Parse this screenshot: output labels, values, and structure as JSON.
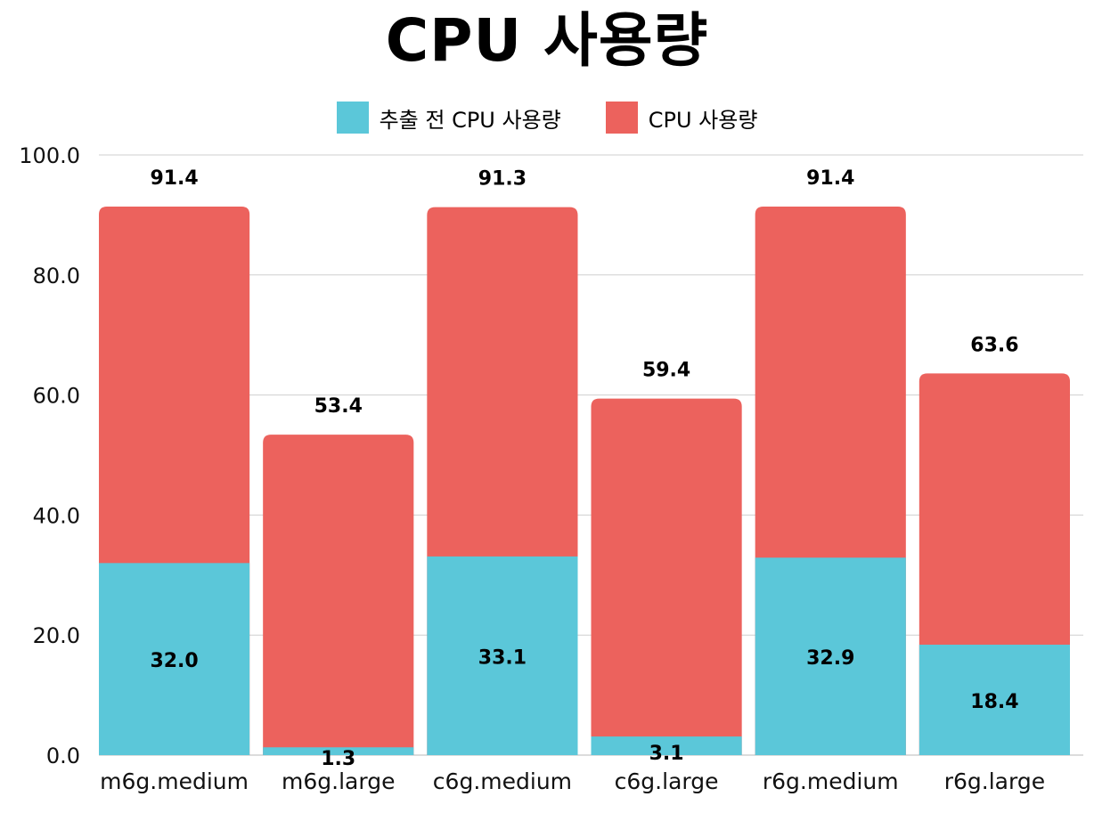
{
  "chart_data": {
    "type": "bar",
    "title": "CPU 사용량",
    "categories": [
      "m6g.medium",
      "m6g.large",
      "c6g.medium",
      "c6g.large",
      "r6g.medium",
      "r6g.large"
    ],
    "series": [
      {
        "name": "추출 전 CPU 사용량",
        "color": "#5BC7D9",
        "values": [
          32.0,
          1.3,
          33.1,
          3.1,
          32.9,
          18.4
        ]
      },
      {
        "name": "CPU 사용량",
        "color": "#EC625D",
        "values": [
          91.4,
          53.4,
          91.3,
          59.4,
          91.4,
          63.6
        ]
      }
    ],
    "ylim": [
      0,
      100
    ],
    "yticks": [
      "0.0",
      "20.0",
      "40.0",
      "60.0",
      "80.0",
      "100.0"
    ],
    "ytick_values": [
      0,
      20,
      40,
      60,
      80,
      100
    ],
    "grid": true,
    "legend_position": "top-center"
  }
}
